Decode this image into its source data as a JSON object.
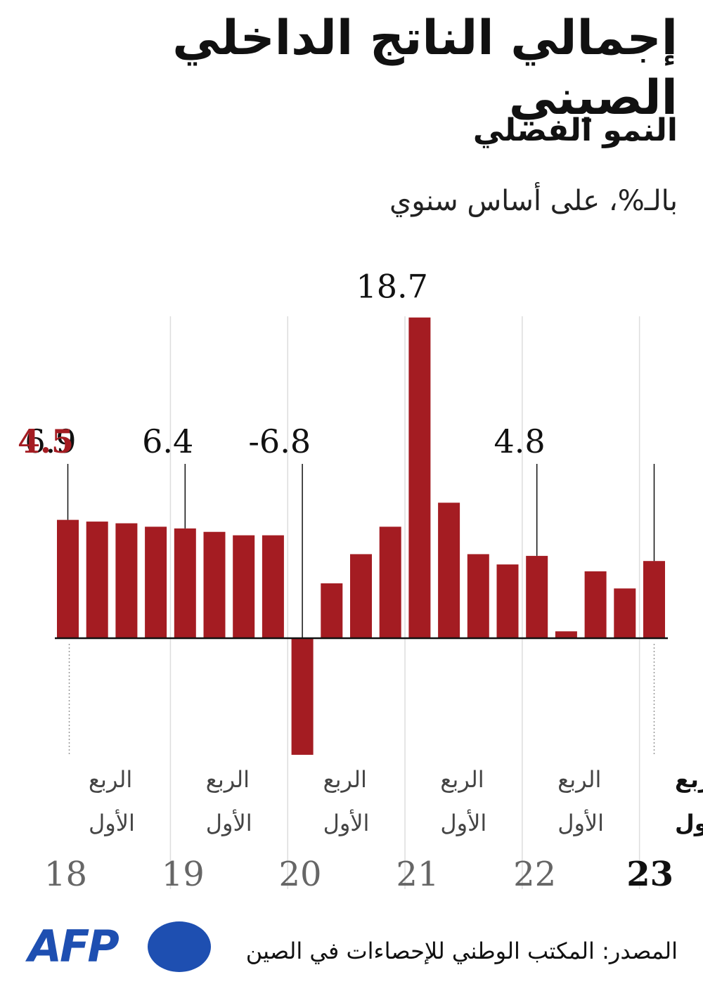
{
  "header": {
    "title": "إجمالي الناتج الداخلي الصيني",
    "subtitle": "النمو الفصلي",
    "unit": "بالـ%، على أساس سنوي"
  },
  "chart_data": {
    "type": "bar",
    "title": "إجمالي الناتج الداخلي الصيني",
    "subtitle": "النمو الفصلي",
    "ylabel": "بالـ%، على أساس سنوي",
    "x": [
      "Q1-18",
      "Q2-18",
      "Q3-18",
      "Q4-18",
      "Q1-19",
      "Q2-19",
      "Q3-19",
      "Q4-19",
      "Q1-20",
      "Q2-20",
      "Q3-20",
      "Q4-20",
      "Q1-21",
      "Q2-21",
      "Q3-21",
      "Q4-21",
      "Q1-22",
      "Q2-22",
      "Q3-22",
      "Q4-22",
      "Q1-23"
    ],
    "values": [
      6.9,
      6.8,
      6.7,
      6.5,
      6.4,
      6.2,
      6.0,
      6.0,
      -6.8,
      3.2,
      4.9,
      6.5,
      18.7,
      7.9,
      4.9,
      4.3,
      4.8,
      0.4,
      3.9,
      2.9,
      4.5
    ],
    "ylim": [
      -6.8,
      18.7
    ],
    "grid": false,
    "colors": {
      "bar": "#a41c22",
      "highlight_label": "#a41c22",
      "divider": "#dddddd"
    },
    "annotations": [
      {
        "index": 0,
        "label": "6.9"
      },
      {
        "index": 4,
        "label": "6.4"
      },
      {
        "index": 8,
        "label": "-6.8"
      },
      {
        "index": 12,
        "label": "18.7"
      },
      {
        "index": 16,
        "label": "4.8"
      },
      {
        "index": 20,
        "label": "4.5",
        "highlight": true
      }
    ],
    "year_groups": [
      {
        "year": "18",
        "quarter_line1": "الربع",
        "quarter_line2": "الأول",
        "highlight": false
      },
      {
        "year": "19",
        "quarter_line1": "الربع",
        "quarter_line2": "الأول",
        "highlight": false
      },
      {
        "year": "20",
        "quarter_line1": "الربع",
        "quarter_line2": "الأول",
        "highlight": false
      },
      {
        "year": "21",
        "quarter_line1": "الربع",
        "quarter_line2": "الأول",
        "highlight": false
      },
      {
        "year": "22",
        "quarter_line1": "الربع",
        "quarter_line2": "الأول",
        "highlight": false
      },
      {
        "year": "23",
        "quarter_line1": "الربع",
        "quarter_line2": "الأول",
        "highlight": true
      }
    ]
  },
  "footer": {
    "logo_text": "AFP",
    "logo_color": "#1e4fb1",
    "source": "المصدر: المكتب الوطني للإحصاءات في الصين"
  }
}
